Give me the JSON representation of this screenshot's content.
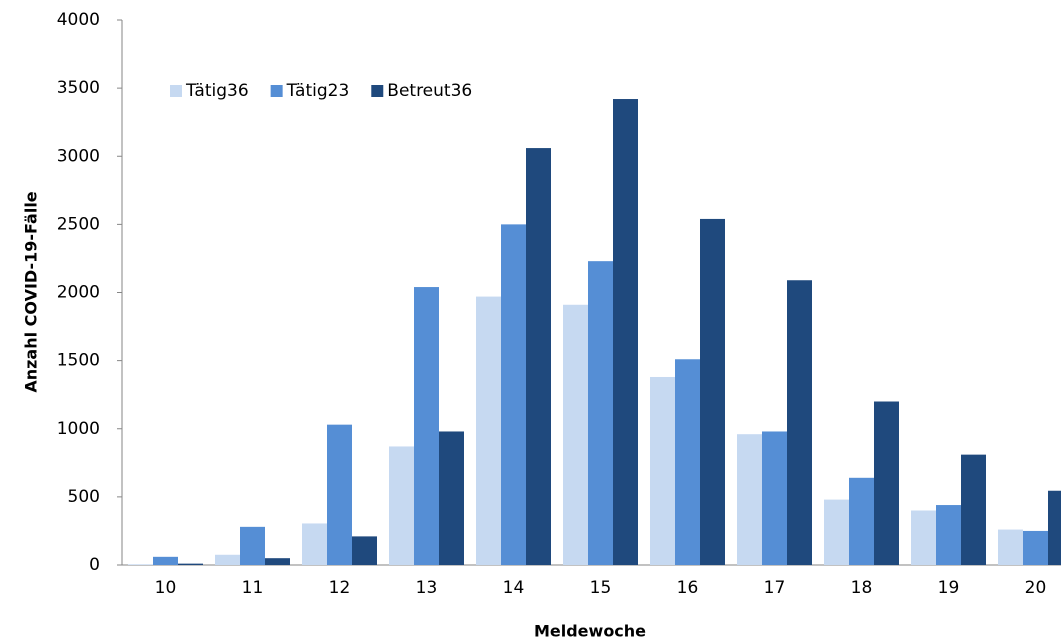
{
  "chart_data": {
    "type": "bar",
    "x_label": "Meldewoche",
    "y_label": "Anzahl COVID-19-Fälle",
    "categories": [
      "10",
      "11",
      "12",
      "13",
      "14",
      "15",
      "16",
      "17",
      "18",
      "19",
      "20"
    ],
    "series": [
      {
        "name": "Tätig36",
        "color": "#c6d9f1",
        "values": [
          5,
          75,
          305,
          870,
          1970,
          1910,
          1380,
          960,
          480,
          400,
          260
        ]
      },
      {
        "name": "Tätig23",
        "color": "#558ed5",
        "values": [
          60,
          280,
          1030,
          2040,
          2500,
          2230,
          1510,
          980,
          640,
          440,
          250
        ]
      },
      {
        "name": "Betreut36",
        "color": "#1f497d",
        "values": [
          10,
          50,
          210,
          980,
          3060,
          3420,
          2540,
          2090,
          1200,
          810,
          545
        ]
      }
    ],
    "ylim": [
      0,
      4000
    ],
    "yticks": [
      0,
      500,
      1000,
      1500,
      2000,
      2500,
      3000,
      3500,
      4000
    ],
    "grid": false,
    "legend": "top-left"
  }
}
